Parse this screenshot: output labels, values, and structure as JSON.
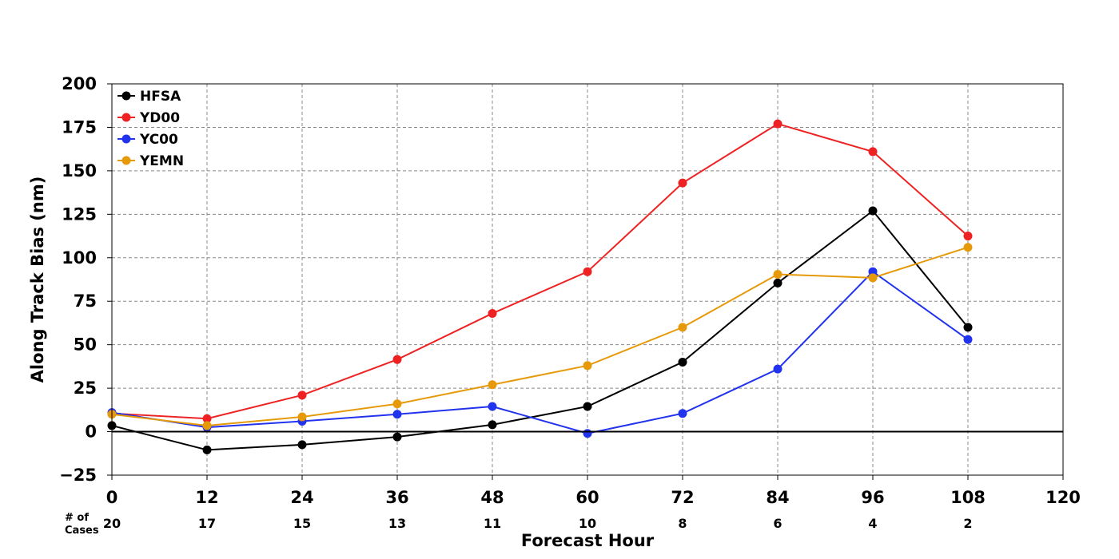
{
  "chart_data": {
    "type": "line",
    "xlabel": "Forecast Hour",
    "ylabel": "Along Track Bias (nm)",
    "xlim": [
      0,
      120
    ],
    "ylim": [
      -25,
      200
    ],
    "x_ticks": [
      "0",
      "12",
      "24",
      "36",
      "48",
      "60",
      "72",
      "84",
      "96",
      "108",
      "120"
    ],
    "y_ticks": [
      "−25",
      "0",
      "25",
      "50",
      "75",
      "100",
      "125",
      "150",
      "175",
      "200"
    ],
    "grid": true,
    "legend_position": "top-left",
    "x": [
      0,
      12,
      24,
      36,
      48,
      60,
      72,
      84,
      96,
      108
    ],
    "series": [
      {
        "name": "HFSA",
        "color": "#000000",
        "values": [
          3.5,
          -10.5,
          -7.5,
          -3,
          4,
          14.5,
          40,
          85.5,
          127,
          60
        ]
      },
      {
        "name": "YD00",
        "color": "#ee2222",
        "values": [
          10.5,
          7.5,
          21,
          41.5,
          68,
          92,
          143,
          177,
          161,
          112.5
        ]
      },
      {
        "name": "YC00",
        "color": "#2233ee",
        "values": [
          11,
          2.5,
          6,
          10,
          14.5,
          -1,
          10.5,
          36,
          92,
          53
        ]
      },
      {
        "name": "YEMN",
        "color": "#e69a0a",
        "values": [
          10,
          3.5,
          8.5,
          16,
          27,
          38,
          60,
          90.5,
          88.5,
          106
        ]
      }
    ],
    "cases_label": "# of\nCases",
    "cases_label_lines": [
      "# of",
      "Cases"
    ],
    "cases": [
      "20",
      "17",
      "15",
      "13",
      "11",
      "10",
      "8",
      "6",
      "4",
      "2"
    ]
  }
}
